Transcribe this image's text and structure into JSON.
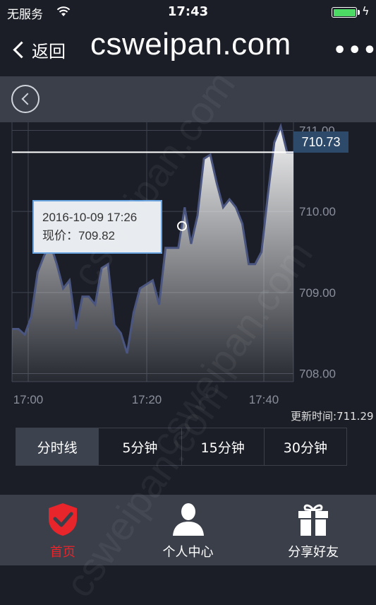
{
  "status_bar": {
    "carrier": "无服务",
    "time": "17:43"
  },
  "nav": {
    "back_label": "返回",
    "title": "csweipan.com",
    "more": "•••"
  },
  "chart_data": {
    "type": "area",
    "x_ticks": [
      "17:00",
      "17:20",
      "17:40"
    ],
    "y_ticks": [
      "711.00",
      "710.00",
      "709.00",
      "708.00"
    ],
    "ylim": [
      707.9,
      711.1
    ],
    "current_price": 710.73,
    "current_price_label": "710.73",
    "x": [
      0,
      1,
      2,
      3,
      4,
      5,
      6,
      7,
      8,
      9,
      10,
      11,
      12,
      13,
      14,
      15,
      16,
      17,
      18,
      19,
      20,
      21,
      22,
      23,
      24,
      25,
      26,
      27,
      28,
      29,
      30,
      31,
      32,
      33,
      34,
      35,
      36,
      37,
      38,
      39,
      40,
      41,
      42,
      43,
      44
    ],
    "values": [
      708.55,
      708.55,
      708.48,
      708.7,
      709.25,
      709.45,
      709.6,
      709.35,
      709.05,
      709.15,
      708.55,
      708.95,
      708.95,
      708.85,
      709.3,
      709.35,
      708.6,
      708.5,
      708.25,
      708.75,
      709.05,
      709.1,
      709.15,
      708.85,
      709.55,
      709.55,
      709.55,
      710.05,
      709.6,
      709.95,
      710.65,
      710.7,
      710.35,
      710.05,
      710.15,
      710.05,
      709.85,
      709.35,
      709.35,
      709.5,
      710.2,
      710.85,
      711.05,
      710.73,
      710.73
    ],
    "grid": true,
    "series_color": "#4a5580"
  },
  "tooltip": {
    "datetime": "2016-10-09 17:26",
    "price_text": "现价：709.82"
  },
  "update_time": "更新时间:711.29",
  "period_tabs": [
    "分时线",
    "5分钟",
    "15分钟",
    "30分钟"
  ],
  "tabbar": [
    {
      "label": "首页",
      "icon": "shield-check-icon",
      "color": "#e8252b"
    },
    {
      "label": "个人中心",
      "icon": "user-icon",
      "color": "#ffffff"
    },
    {
      "label": "分享好友",
      "icon": "gift-icon",
      "color": "#ffffff"
    }
  ],
  "watermark": "csweipan.com"
}
